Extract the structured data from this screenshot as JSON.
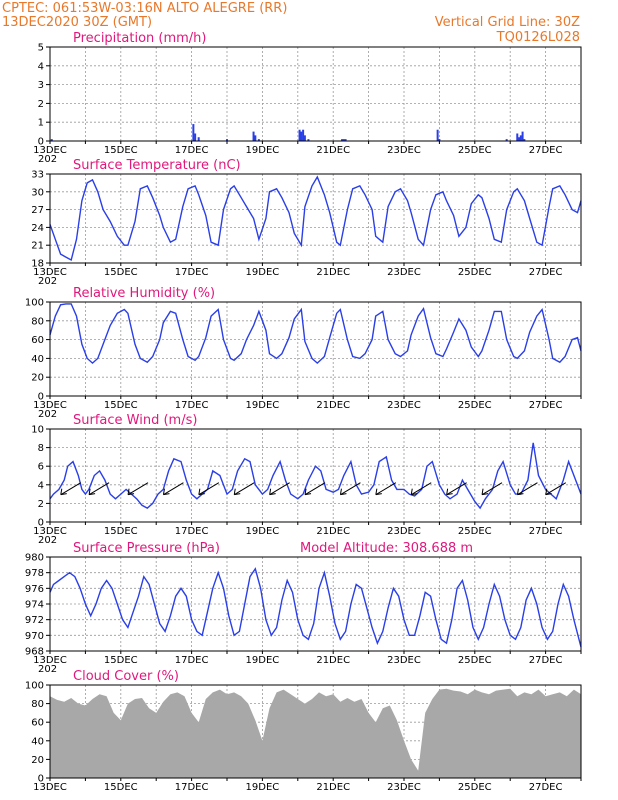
{
  "header": {
    "line1_left": "CPTEC:   061:53W-03:16N  ALTO ALEGRE (RR)",
    "line2_left": "13DEC2020 30Z (GMT)",
    "line1_right": "Vertical Grid Line: 30Z",
    "line2_right": "TQ0126L028"
  },
  "colors": {
    "header": "#e8782a",
    "panel_title": "#e0187c",
    "series_line": "#2a3fe8",
    "cloud_fill": "#a8a8a8",
    "grid": "#9a9a9a"
  },
  "x_axis": {
    "start": "13DEC",
    "end": "28DEC",
    "tick_labels": [
      "13DEC",
      "15DEC",
      "17DEC",
      "19DEC",
      "21DEC",
      "23DEC",
      "25DEC",
      "27DEC"
    ],
    "stray_label": "202"
  },
  "chart_data": [
    {
      "id": "precip",
      "type": "bar",
      "title": "Precipitation (mm/h)",
      "ylim": [
        0,
        5
      ],
      "yticks": [
        0,
        1,
        2,
        3,
        4,
        5
      ],
      "x_unit": "day offset from 13DEC 00Z",
      "x": [
        0.05,
        4.05,
        4.1,
        4.2,
        5.0,
        5.75,
        5.8,
        5.9,
        7.05,
        7.1,
        7.15,
        7.2,
        7.3,
        8.25,
        8.3,
        8.35,
        10.95,
        11.0,
        12.9,
        13.2,
        13.25,
        13.3,
        13.35,
        13.4
      ],
      "values": [
        0.1,
        0.9,
        0.4,
        0.2,
        0.1,
        0.5,
        0.3,
        0.1,
        0.6,
        0.5,
        0.6,
        0.3,
        0.1,
        0.1,
        0.1,
        0.1,
        0.6,
        0.1,
        0.1,
        0.4,
        0.2,
        0.3,
        0.5,
        0.1
      ]
    },
    {
      "id": "temp",
      "type": "line",
      "title": "Surface Temperature (nC)",
      "ylim": [
        18,
        33
      ],
      "yticks": [
        18,
        21,
        24,
        27,
        30,
        33
      ],
      "x_unit": "day offset from 13DEC 00Z",
      "x": [
        0,
        0.15,
        0.3,
        0.45,
        0.6,
        0.75,
        0.9,
        1.05,
        1.2,
        1.35,
        1.5,
        1.7,
        1.9,
        2.1,
        2.2,
        2.4,
        2.55,
        2.75,
        2.9,
        3.1,
        3.2,
        3.4,
        3.55,
        3.75,
        3.9,
        4.1,
        4.2,
        4.4,
        4.55,
        4.75,
        4.9,
        5.1,
        5.2,
        5.4,
        5.55,
        5.75,
        5.9,
        6.1,
        6.2,
        6.4,
        6.55,
        6.75,
        6.9,
        7.1,
        7.2,
        7.4,
        7.55,
        7.75,
        7.9,
        8.1,
        8.2,
        8.4,
        8.55,
        8.75,
        8.9,
        9.1,
        9.2,
        9.4,
        9.55,
        9.75,
        9.9,
        10.1,
        10.2,
        10.4,
        10.55,
        10.75,
        10.9,
        11.1,
        11.2,
        11.4,
        11.55,
        11.75,
        11.9,
        12.1,
        12.2,
        12.4,
        12.55,
        12.75,
        12.9,
        13.1,
        13.2,
        13.4,
        13.55,
        13.75,
        13.9,
        14.1,
        14.2,
        14.4,
        14.55,
        14.75,
        14.9,
        15.0
      ],
      "values": [
        24.5,
        22,
        19.5,
        19,
        18.5,
        22,
        28.5,
        31.5,
        32,
        30,
        27,
        25,
        22.5,
        21,
        21,
        25,
        30.5,
        31,
        29,
        26,
        24,
        21.5,
        22,
        27.5,
        30.5,
        31,
        29.5,
        26,
        21.5,
        21,
        27,
        30.5,
        31,
        29,
        27.5,
        25.5,
        22,
        25.5,
        30,
        30.5,
        29,
        26.5,
        23,
        21,
        27.5,
        31,
        32.5,
        29.5,
        26.5,
        21.5,
        21,
        27,
        30.5,
        31,
        29.5,
        27,
        22.5,
        21.5,
        27.5,
        30,
        30.5,
        28.5,
        26.5,
        22,
        21,
        27,
        29.5,
        30,
        28.5,
        26,
        22.5,
        24,
        28,
        29.5,
        29,
        25.5,
        22,
        21.5,
        27,
        30,
        30.5,
        28.5,
        25.5,
        21.5,
        21,
        27.5,
        30.5,
        31,
        29.5,
        27,
        26.5,
        28.5
      ]
    },
    {
      "id": "rh",
      "type": "line",
      "title": "Relative Humidity (%)",
      "ylim": [
        0,
        100
      ],
      "yticks": [
        0,
        20,
        40,
        60,
        80,
        100
      ],
      "x_unit": "day offset from 13DEC 00Z",
      "x": [
        0,
        0.15,
        0.3,
        0.45,
        0.6,
        0.75,
        0.9,
        1.05,
        1.2,
        1.35,
        1.5,
        1.7,
        1.9,
        2.1,
        2.2,
        2.4,
        2.55,
        2.75,
        2.9,
        3.1,
        3.2,
        3.4,
        3.55,
        3.75,
        3.9,
        4.1,
        4.2,
        4.4,
        4.55,
        4.75,
        4.9,
        5.1,
        5.2,
        5.4,
        5.55,
        5.75,
        5.9,
        6.1,
        6.2,
        6.4,
        6.55,
        6.75,
        6.9,
        7.1,
        7.2,
        7.4,
        7.55,
        7.75,
        7.9,
        8.1,
        8.2,
        8.4,
        8.55,
        8.75,
        8.9,
        9.1,
        9.2,
        9.4,
        9.55,
        9.75,
        9.9,
        10.1,
        10.2,
        10.4,
        10.55,
        10.75,
        10.9,
        11.1,
        11.2,
        11.4,
        11.55,
        11.75,
        11.9,
        12.1,
        12.2,
        12.4,
        12.55,
        12.75,
        12.9,
        13.1,
        13.2,
        13.4,
        13.55,
        13.75,
        13.9,
        14.1,
        14.2,
        14.4,
        14.55,
        14.75,
        14.9,
        15.0
      ],
      "values": [
        65,
        85,
        97,
        98,
        98,
        85,
        55,
        40,
        35,
        40,
        55,
        75,
        88,
        92,
        88,
        55,
        40,
        36,
        42,
        60,
        78,
        90,
        88,
        60,
        42,
        38,
        42,
        62,
        85,
        92,
        60,
        40,
        38,
        45,
        60,
        75,
        90,
        70,
        45,
        40,
        45,
        62,
        82,
        92,
        58,
        40,
        35,
        42,
        62,
        88,
        92,
        60,
        42,
        40,
        45,
        60,
        85,
        90,
        60,
        45,
        42,
        48,
        65,
        85,
        93,
        62,
        45,
        42,
        50,
        68,
        82,
        70,
        52,
        42,
        48,
        70,
        90,
        90,
        60,
        42,
        40,
        48,
        68,
        85,
        92,
        60,
        40,
        36,
        42,
        60,
        62,
        48
      ]
    },
    {
      "id": "wind",
      "type": "line",
      "title": "Surface Wind (m/s)",
      "ylim": [
        0,
        10
      ],
      "yticks": [
        0,
        2,
        4,
        6,
        8,
        10
      ],
      "x_unit": "day offset from 13DEC 00Z",
      "x": [
        0,
        0.1,
        0.25,
        0.4,
        0.5,
        0.65,
        0.8,
        0.9,
        1.0,
        1.1,
        1.25,
        1.4,
        1.55,
        1.7,
        1.85,
        2.0,
        2.15,
        2.3,
        2.45,
        2.6,
        2.75,
        2.9,
        3.05,
        3.2,
        3.35,
        3.5,
        3.7,
        3.85,
        4.0,
        4.15,
        4.3,
        4.45,
        4.6,
        4.8,
        5.0,
        5.15,
        5.3,
        5.5,
        5.65,
        5.8,
        6.0,
        6.15,
        6.3,
        6.5,
        6.65,
        6.8,
        7.0,
        7.15,
        7.3,
        7.5,
        7.65,
        7.8,
        8.0,
        8.15,
        8.3,
        8.5,
        8.65,
        8.8,
        9.0,
        9.15,
        9.3,
        9.5,
        9.65,
        9.8,
        10.0,
        10.15,
        10.3,
        10.5,
        10.65,
        10.8,
        11.0,
        11.15,
        11.3,
        11.5,
        11.65,
        11.8,
        12.0,
        12.15,
        12.3,
        12.5,
        12.65,
        12.8,
        13.0,
        13.15,
        13.3,
        13.5,
        13.65,
        13.8,
        14.0,
        14.15,
        14.3,
        14.5,
        14.65,
        14.8,
        15.0
      ],
      "values": [
        2.5,
        3,
        3.5,
        4.5,
        6,
        6.5,
        5,
        3.5,
        3,
        3.5,
        5,
        5.5,
        4.5,
        3,
        2.5,
        3,
        3.5,
        3,
        2.5,
        1.8,
        1.5,
        2,
        3,
        3.5,
        5.5,
        6.8,
        6.5,
        4.5,
        3,
        2.5,
        3,
        3.5,
        5.5,
        5,
        3,
        3.5,
        5.5,
        6.8,
        6.5,
        4,
        3,
        3.5,
        5,
        6.5,
        4.5,
        3,
        2.5,
        3,
        4.5,
        6,
        5.5,
        3.5,
        3.2,
        3.5,
        5,
        6.5,
        4,
        3,
        3.2,
        4,
        6.5,
        7,
        4.5,
        3.5,
        3.5,
        3,
        2.8,
        3.5,
        6,
        6.5,
        4,
        3,
        2.5,
        3,
        4.5,
        3.5,
        2.2,
        1.5,
        2.5,
        3.5,
        5.5,
        6.5,
        4,
        3,
        3,
        4.5,
        8.5,
        5,
        3.5,
        3,
        2.5,
        4.5,
        6.5,
        5,
        3
      ]
    },
    {
      "id": "pressure",
      "type": "line",
      "title": "Surface Pressure (hPa)",
      "annotation": "Model Altitude: 308.688 m",
      "ylim": [
        968,
        980
      ],
      "yticks": [
        968,
        970,
        972,
        974,
        976,
        978,
        980
      ],
      "x_unit": "day offset from 13DEC 00Z",
      "x": [
        0,
        0.1,
        0.25,
        0.4,
        0.55,
        0.7,
        0.85,
        1.0,
        1.15,
        1.3,
        1.45,
        1.6,
        1.75,
        1.9,
        2.05,
        2.2,
        2.35,
        2.5,
        2.65,
        2.8,
        2.95,
        3.1,
        3.25,
        3.4,
        3.55,
        3.7,
        3.85,
        4.0,
        4.15,
        4.3,
        4.45,
        4.6,
        4.75,
        4.9,
        5.05,
        5.2,
        5.35,
        5.5,
        5.65,
        5.8,
        5.95,
        6.1,
        6.25,
        6.4,
        6.55,
        6.7,
        6.85,
        7.0,
        7.15,
        7.3,
        7.45,
        7.6,
        7.75,
        7.9,
        8.05,
        8.2,
        8.35,
        8.5,
        8.65,
        8.8,
        8.95,
        9.1,
        9.25,
        9.4,
        9.55,
        9.7,
        9.85,
        10.0,
        10.15,
        10.3,
        10.45,
        10.6,
        10.75,
        10.9,
        11.05,
        11.2,
        11.35,
        11.5,
        11.65,
        11.8,
        11.95,
        12.1,
        12.25,
        12.4,
        12.55,
        12.7,
        12.85,
        13.0,
        13.15,
        13.3,
        13.45,
        13.6,
        13.75,
        13.9,
        14.05,
        14.2,
        14.35,
        14.5,
        14.65,
        14.8,
        15.0
      ],
      "values": [
        975.5,
        976.5,
        977,
        977.5,
        978,
        977.5,
        976,
        974,
        972.5,
        974,
        976,
        977,
        976,
        974,
        972,
        971,
        973,
        975,
        977.5,
        976.5,
        974,
        971.5,
        970.5,
        972.5,
        975,
        976,
        975,
        972,
        970.5,
        970,
        973,
        976,
        978,
        976,
        972.5,
        970,
        970.5,
        974,
        977.5,
        978.5,
        976,
        972,
        970,
        971,
        974.5,
        977,
        975.5,
        972,
        970,
        969.5,
        971.5,
        976,
        978,
        975,
        971.5,
        969.5,
        970.5,
        974,
        976.5,
        976,
        973.5,
        971,
        969,
        970.5,
        973.5,
        976,
        975,
        972,
        970,
        970,
        972.5,
        975.5,
        975,
        972,
        969.5,
        969,
        972,
        976,
        977,
        974.5,
        971,
        969.5,
        971,
        974,
        976.5,
        975,
        972,
        970,
        969.5,
        971,
        974.5,
        976,
        974,
        971,
        969.5,
        970.5,
        974,
        976.5,
        975,
        972,
        968.5
      ]
    },
    {
      "id": "cloud",
      "type": "area",
      "title": "Cloud Cover (%)",
      "ylim": [
        0,
        100
      ],
      "yticks": [
        0,
        20,
        40,
        60,
        80,
        100
      ],
      "x_unit": "day offset from 13DEC 00Z",
      "x": [
        0,
        0.2,
        0.4,
        0.6,
        0.8,
        1.0,
        1.2,
        1.4,
        1.6,
        1.8,
        2.0,
        2.2,
        2.4,
        2.6,
        2.8,
        3.0,
        3.2,
        3.4,
        3.6,
        3.8,
        4.0,
        4.2,
        4.4,
        4.6,
        4.8,
        5.0,
        5.2,
        5.4,
        5.6,
        5.8,
        6.0,
        6.2,
        6.4,
        6.6,
        6.8,
        7.0,
        7.2,
        7.4,
        7.6,
        7.8,
        8.0,
        8.2,
        8.4,
        8.6,
        8.8,
        9.0,
        9.2,
        9.4,
        9.6,
        9.8,
        10.0,
        10.2,
        10.4,
        10.6,
        10.8,
        11.0,
        11.2,
        11.4,
        11.6,
        11.8,
        12.0,
        12.2,
        12.4,
        12.6,
        12.8,
        13.0,
        13.2,
        13.4,
        13.6,
        13.8,
        14.0,
        14.2,
        14.4,
        14.6,
        14.8,
        15.0
      ],
      "values": [
        88,
        84,
        82,
        86,
        80,
        78,
        85,
        90,
        88,
        70,
        62,
        80,
        85,
        86,
        75,
        70,
        82,
        90,
        92,
        88,
        70,
        60,
        85,
        92,
        95,
        90,
        92,
        88,
        80,
        62,
        40,
        75,
        92,
        95,
        90,
        85,
        80,
        85,
        92,
        88,
        90,
        82,
        86,
        82,
        85,
        70,
        60,
        75,
        78,
        62,
        40,
        20,
        8,
        70,
        85,
        95,
        96,
        94,
        93,
        90,
        95,
        92,
        90,
        94,
        95,
        96,
        88,
        92,
        90,
        95,
        88,
        90,
        92,
        88,
        95,
        90
      ]
    }
  ]
}
